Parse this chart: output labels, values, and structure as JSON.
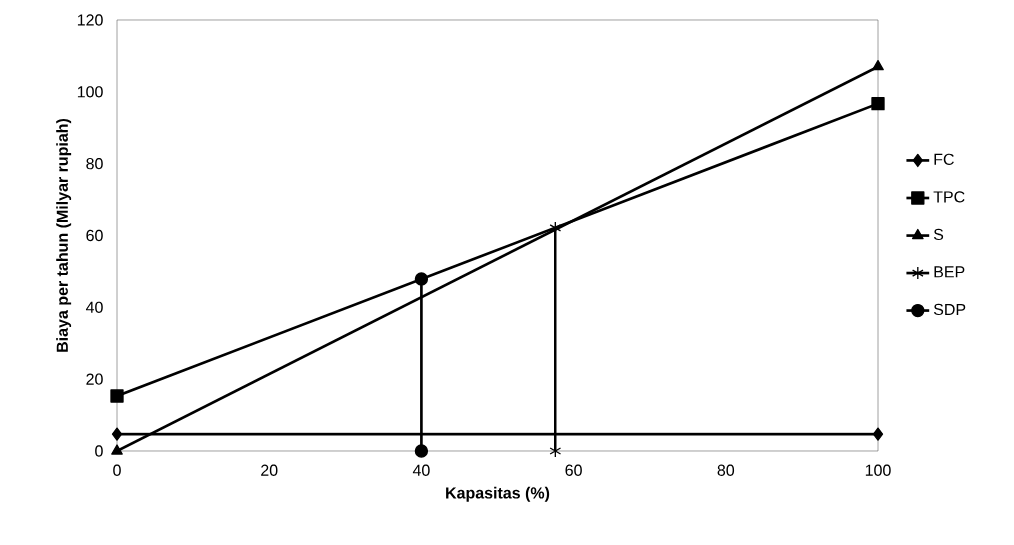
{
  "chart_data": {
    "type": "line",
    "xlabel": "Kapasitas (%)",
    "ylabel": "Biaya per tahun (Milyar rupiah)",
    "xlim": [
      0,
      100
    ],
    "ylim": [
      0,
      120
    ],
    "xticks": [
      0,
      20,
      40,
      60,
      80,
      100
    ],
    "yticks": [
      0,
      20,
      40,
      60,
      80,
      100,
      120
    ],
    "grid": false,
    "legend": "right",
    "line_style": "solid",
    "series": [
      {
        "name": "FC",
        "color": "#000000",
        "marker": "diamond",
        "x": [
          0,
          100
        ],
        "values": [
          4.7,
          4.7
        ]
      },
      {
        "name": "TPC",
        "color": "#000000",
        "marker": "square",
        "x": [
          0,
          100
        ],
        "values": [
          15.3,
          96.7
        ]
      },
      {
        "name": "S",
        "color": "#000000",
        "marker": "triangle",
        "x": [
          0,
          100
        ],
        "values": [
          0,
          107
        ]
      },
      {
        "name": "BEP",
        "color": "#000000",
        "marker": "cross",
        "x": [
          57.6,
          57.6
        ],
        "values": [
          0,
          62.1
        ]
      },
      {
        "name": "SDP",
        "color": "#000000",
        "marker": "circle",
        "x": [
          40,
          40
        ],
        "values": [
          0,
          47.9
        ]
      }
    ]
  }
}
